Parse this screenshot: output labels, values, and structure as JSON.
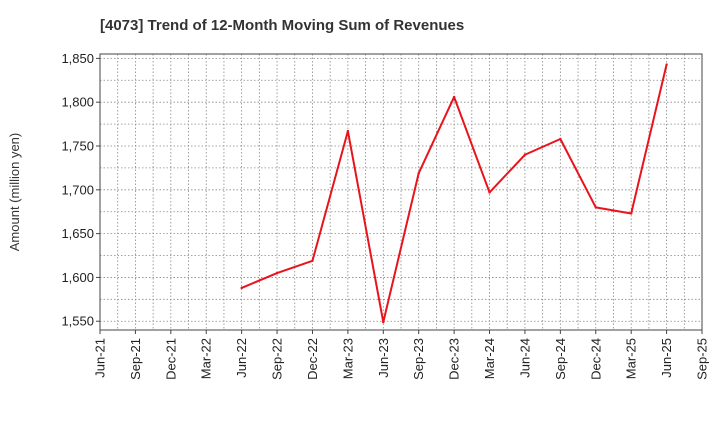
{
  "chart_data": {
    "type": "line",
    "title": "[4073]  Trend of 12-Month Moving Sum of Revenues",
    "xlabel": "",
    "ylabel": "Amount (million yen)",
    "ylim": [
      1540,
      1855
    ],
    "yticks": [
      1550,
      1600,
      1650,
      1700,
      1750,
      1800,
      1850
    ],
    "ytick_labels": [
      "1,550",
      "1,600",
      "1,650",
      "1,700",
      "1,750",
      "1,800",
      "1,850"
    ],
    "x_ticks": [
      "Jun-21",
      "Sep-21",
      "Dec-21",
      "Mar-22",
      "Jun-22",
      "Sep-22",
      "Dec-22",
      "Mar-23",
      "Jun-23",
      "Sep-23",
      "Dec-23",
      "Mar-24",
      "Jun-24",
      "Sep-24",
      "Dec-24",
      "Mar-25",
      "Jun-25",
      "Sep-25"
    ],
    "grid": true,
    "legend": "none",
    "series": [
      {
        "color": "#e8141c",
        "x": [
          "Jun-22",
          "Sep-22",
          "Dec-22",
          "Mar-23",
          "Jun-23",
          "Sep-23",
          "Dec-23",
          "Mar-24",
          "Jun-24",
          "Sep-24",
          "Dec-24",
          "Mar-25",
          "Jun-25"
        ],
        "values": [
          1588,
          1605,
          1619,
          1767,
          1549,
          1719,
          1806,
          1697,
          1740,
          1758,
          1680,
          1673,
          1843
        ]
      }
    ]
  }
}
